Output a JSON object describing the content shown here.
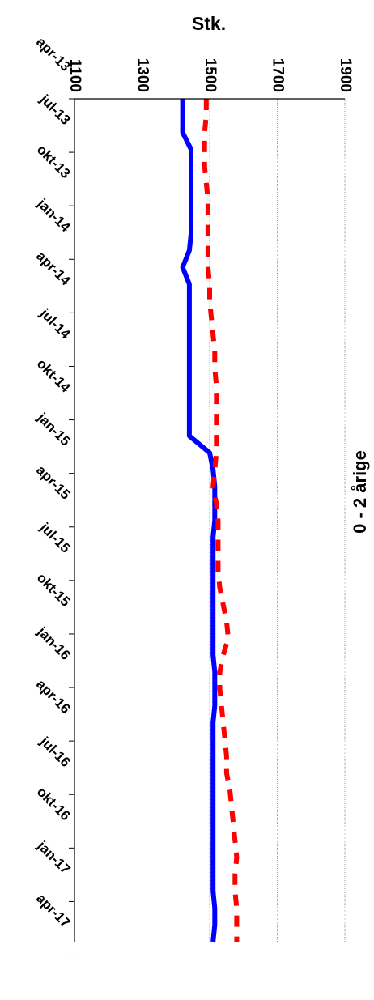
{
  "chart_data": {
    "type": "line",
    "orientation": "rotated-90-clockwise",
    "title": "0 - 2 årige",
    "ylabel": "Stk.",
    "xlabel": "",
    "ylim": [
      1100,
      1900
    ],
    "yticks": [
      1100,
      1300,
      1500,
      1700,
      1900
    ],
    "ytick_labels": [
      "1100",
      "1300",
      "1500",
      "1700",
      "1900"
    ],
    "grid": true,
    "legend": "none",
    "x_tick_labels": [
      "apr-13",
      "jul-13",
      "okt-13",
      "jan-14",
      "apr-14",
      "jul-14",
      "okt-14",
      "jan-15",
      "apr-15",
      "jul-15",
      "okt-15",
      "jan-16",
      "apr-16",
      "jul-16",
      "okt-16",
      "jan-17",
      "apr-17"
    ],
    "series": [
      {
        "color": "#0000ff",
        "style": "solid",
        "values": [
          1420,
          1420,
          1420,
          1445,
          1445,
          1445,
          1445,
          1445,
          1445,
          1440,
          1420,
          1440,
          1440,
          1440,
          1440,
          1440,
          1440,
          1440,
          1440,
          1440,
          1440,
          1500,
          1510,
          1515,
          1515,
          1515,
          1510,
          1510,
          1510,
          1510,
          1510,
          1510,
          1510,
          1510,
          1515,
          1515,
          1515,
          1510,
          1510,
          1510,
          1510,
          1510,
          1510,
          1510,
          1510,
          1510,
          1510,
          1510,
          1515,
          1515,
          1510
        ]
      },
      {
        "color": "#ff0000",
        "style": "dashed",
        "values": [
          1490,
          1490,
          1485,
          1485,
          1485,
          1490,
          1495,
          1495,
          1495,
          1495,
          1495,
          1500,
          1500,
          1505,
          1510,
          1515,
          1515,
          1520,
          1520,
          1520,
          1520,
          1520,
          1515,
          1510,
          1520,
          1525,
          1525,
          1525,
          1525,
          1530,
          1540,
          1550,
          1555,
          1540,
          1530,
          1530,
          1535,
          1540,
          1545,
          1550,
          1550,
          1560,
          1565,
          1570,
          1575,
          1580,
          1575,
          1575,
          1580,
          1580,
          1580
        ]
      }
    ]
  }
}
